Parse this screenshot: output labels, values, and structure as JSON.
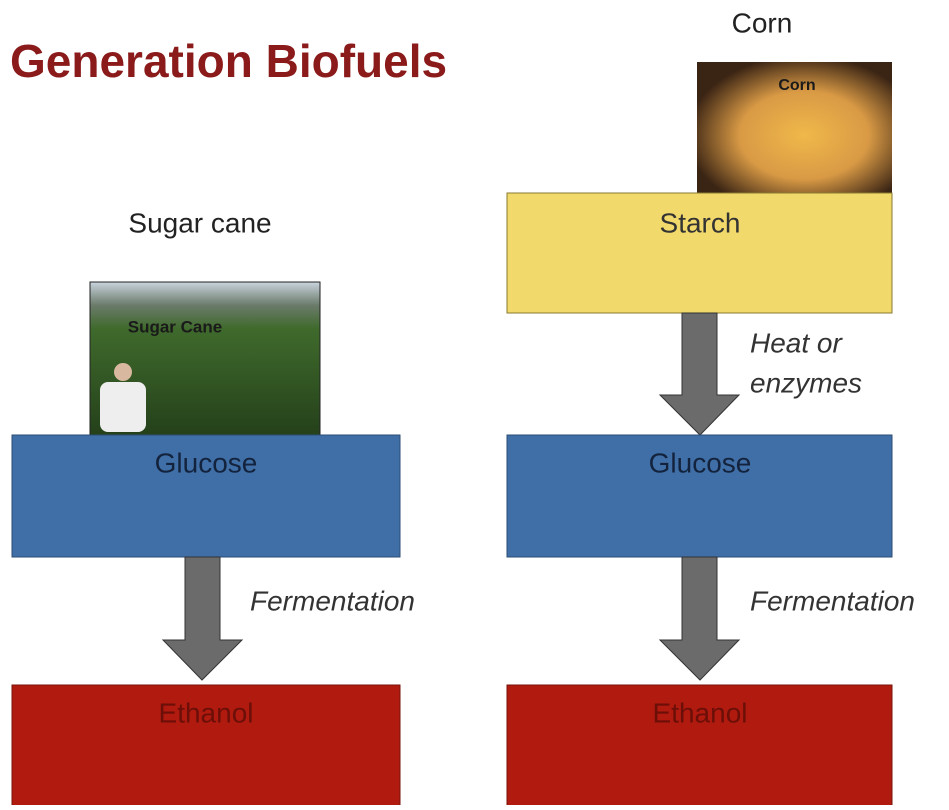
{
  "title": "Generation Biofuels",
  "left": {
    "source_label": "Sugar cane",
    "image_label": "Sugar Cane",
    "boxes": [
      "Glucose",
      "Ethanol"
    ],
    "arrows": [
      "Fermentation"
    ]
  },
  "right": {
    "source_label": "Corn",
    "image_label": "Corn",
    "boxes": [
      "Starch",
      "Glucose",
      "Ethanol"
    ],
    "arrows": [
      [
        "Heat or",
        "enzymes"
      ],
      "Fermentation"
    ]
  }
}
